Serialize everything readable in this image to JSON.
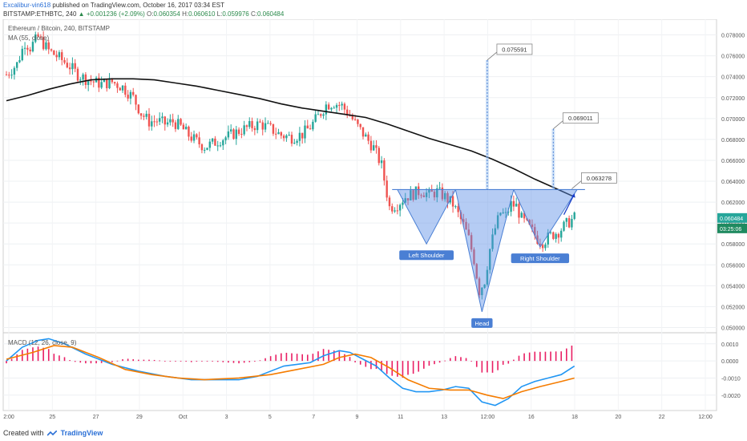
{
  "header": {
    "author": "Excalibur-vin618",
    "published": "published on TradingView.com, October 16, 2017 03:34 EST",
    "symbol": "BITSTAMP:ETHBTC, 240",
    "change": "▲ +0.001236 (+2.09%)",
    "open_label": "O:",
    "open": "0.060354",
    "high_label": "H:",
    "high": "0.060610",
    "low_label": "L:",
    "low": "0.059976",
    "close_label": "C:",
    "close": "0.060484"
  },
  "legend": {
    "title": "Ethereum / Bitcoin, 240, BITSTAMP",
    "ma": "MA (55, close)",
    "macd": "MACD (12, 26, close, 9)"
  },
  "footer": {
    "created_with": "Created with",
    "brand": "TradingView"
  },
  "colors": {
    "up": "#26a69a",
    "down": "#ef5350",
    "ma": "#111111",
    "macd": "#2196f3",
    "signal": "#f57c00",
    "hist": "#e91e63",
    "pattern": "#5b8ee6"
  },
  "chart_data": [
    {
      "type": "candlestick",
      "title": "Ethereum / Bitcoin, 240, BITSTAMP",
      "ylim": [
        0.0495,
        0.0795
      ],
      "y_ticks": [
        0.078,
        0.076,
        0.074,
        0.072,
        0.07,
        0.068,
        0.066,
        0.064,
        0.062,
        0.06,
        0.058,
        0.056,
        0.054,
        0.052,
        0.05
      ],
      "y_tick_labels": [
        "0.078000",
        "0.076000",
        "0.074000",
        "0.072000",
        "0.070000",
        "0.068000",
        "0.066000",
        "0.064000",
        "0.062000",
        "0.060000",
        "0.058000",
        "0.056000",
        "0.054000",
        "0.052000",
        "0.050000"
      ],
      "x_ticks": [
        "2:00",
        "25",
        "27",
        "29",
        "Oct",
        "3",
        "5",
        "7",
        "9",
        "11",
        "13",
        "12:00",
        "16",
        "18",
        "20",
        "22",
        "12:00"
      ],
      "last_price": "0.060484",
      "countdown": "03:25:06",
      "close_path": [
        [
          0,
          0.0742
        ],
        [
          4,
          0.0752
        ],
        [
          7,
          0.0773
        ],
        [
          9,
          0.0768
        ],
        [
          12,
          0.0778
        ],
        [
          16,
          0.0765
        ],
        [
          20,
          0.0758
        ],
        [
          24,
          0.075
        ],
        [
          27,
          0.0742
        ],
        [
          30,
          0.0738
        ],
        [
          33,
          0.0735
        ],
        [
          36,
          0.0733
        ],
        [
          40,
          0.0735
        ],
        [
          44,
          0.073
        ],
        [
          48,
          0.072
        ],
        [
          51,
          0.0705
        ],
        [
          54,
          0.0697
        ],
        [
          57,
          0.0698
        ],
        [
          60,
          0.0695
        ],
        [
          63,
          0.0697
        ],
        [
          66,
          0.0692
        ],
        [
          69,
          0.0684
        ],
        [
          72,
          0.0678
        ],
        [
          75,
          0.0673
        ],
        [
          78,
          0.0676
        ],
        [
          81,
          0.068
        ],
        [
          84,
          0.0683
        ],
        [
          88,
          0.0688
        ],
        [
          92,
          0.0692
        ],
        [
          96,
          0.0695
        ],
        [
          100,
          0.069
        ],
        [
          104,
          0.0684
        ],
        [
          108,
          0.0682
        ],
        [
          112,
          0.0685
        ],
        [
          115,
          0.0692
        ],
        [
          118,
          0.0702
        ],
        [
          121,
          0.0713
        ],
        [
          124,
          0.0715
        ],
        [
          127,
          0.0712
        ],
        [
          130,
          0.0703
        ],
        [
          133,
          0.0692
        ],
        [
          136,
          0.0682
        ],
        [
          139,
          0.0672
        ],
        [
          142,
          0.0655
        ],
        [
          145,
          0.0615
        ],
        [
          148,
          0.0618
        ],
        [
          151,
          0.0625
        ],
        [
          154,
          0.0628
        ],
        [
          157,
          0.0631
        ],
        [
          160,
          0.0627
        ],
        [
          163,
          0.063
        ],
        [
          166,
          0.0625
        ],
        [
          169,
          0.0618
        ],
        [
          171,
          0.0608
        ],
        [
          173,
          0.0598
        ],
        [
          175,
          0.0585
        ],
        [
          177,
          0.0565
        ],
        [
          179,
          0.0535
        ],
        [
          181,
          0.0545
        ],
        [
          183,
          0.0575
        ],
        [
          185,
          0.0595
        ],
        [
          187,
          0.061
        ],
        [
          189,
          0.0607
        ],
        [
          191,
          0.0618
        ],
        [
          193,
          0.0616
        ],
        [
          195,
          0.0604
        ],
        [
          197,
          0.0598
        ],
        [
          199,
          0.0592
        ],
        [
          201,
          0.0585
        ],
        [
          203,
          0.0582
        ],
        [
          206,
          0.0588
        ],
        [
          209,
          0.0592
        ],
        [
          212,
          0.0599
        ],
        [
          215,
          0.0605
        ]
      ],
      "ma_period": 55,
      "ma_path": [
        [
          0,
          0.0717
        ],
        [
          8,
          0.0722
        ],
        [
          16,
          0.0728
        ],
        [
          24,
          0.0733
        ],
        [
          32,
          0.0737
        ],
        [
          40,
          0.0738
        ],
        [
          48,
          0.0738
        ],
        [
          56,
          0.0737
        ],
        [
          64,
          0.0734
        ],
        [
          72,
          0.0731
        ],
        [
          80,
          0.0727
        ],
        [
          88,
          0.0723
        ],
        [
          96,
          0.0719
        ],
        [
          104,
          0.0714
        ],
        [
          112,
          0.071
        ],
        [
          120,
          0.0707
        ],
        [
          128,
          0.0704
        ],
        [
          136,
          0.0701
        ],
        [
          144,
          0.0695
        ],
        [
          152,
          0.0688
        ],
        [
          160,
          0.0681
        ],
        [
          168,
          0.0675
        ],
        [
          176,
          0.0669
        ],
        [
          184,
          0.0661
        ],
        [
          192,
          0.0652
        ],
        [
          200,
          0.0642
        ],
        [
          208,
          0.0633
        ],
        [
          215,
          0.0625
        ]
      ],
      "pattern": {
        "left_shoulder": {
          "label": "Left Shoulder",
          "low": 0.058,
          "low_x": 159
        },
        "head": {
          "label": "Head",
          "low": 0.0515,
          "low_x": 180
        },
        "right_shoulder": {
          "label": "Right Shoulder",
          "low": 0.0577,
          "low_x": 202
        },
        "neckline": 0.0632
      },
      "targets": [
        {
          "label": "0.075591",
          "value": 0.075591,
          "x": 182
        },
        {
          "label": "0.069011",
          "value": 0.069011,
          "x": 207
        },
        {
          "label": "0.063278",
          "value": 0.063278,
          "x": 214
        }
      ]
    },
    {
      "type": "line",
      "title": "MACD (12, 26, close, 9)",
      "ylim": [
        -0.0029,
        0.0016
      ],
      "y_ticks": [
        0.001,
        0.0,
        -0.001,
        -0.002
      ],
      "y_tick_labels": [
        "0.0010",
        "0.0000",
        "-0.0010",
        "-0.0020"
      ],
      "series": [
        {
          "name": "MACD",
          "values": [
            [
              0,
              0.0
            ],
            [
              6,
              0.0008
            ],
            [
              12,
              0.0012
            ],
            [
              16,
              0.0013
            ],
            [
              22,
              0.001
            ],
            [
              30,
              0.0004
            ],
            [
              40,
              -0.0002
            ],
            [
              50,
              -0.0006
            ],
            [
              60,
              -0.0009
            ],
            [
              70,
              -0.0011
            ],
            [
              80,
              -0.0011
            ],
            [
              88,
              -0.0011
            ],
            [
              95,
              -0.0009
            ],
            [
              100,
              -0.0006
            ],
            [
              105,
              -0.0003
            ],
            [
              110,
              -0.0002
            ],
            [
              115,
              -0.0001
            ],
            [
              120,
              0.0003
            ],
            [
              126,
              0.0006
            ],
            [
              130,
              0.0005
            ],
            [
              135,
              0.0001
            ],
            [
              140,
              -0.0003
            ],
            [
              145,
              -0.001
            ],
            [
              150,
              -0.0016
            ],
            [
              155,
              -0.0018
            ],
            [
              160,
              -0.0018
            ],
            [
              165,
              -0.0017
            ],
            [
              170,
              -0.0015
            ],
            [
              175,
              -0.0016
            ],
            [
              180,
              -0.0024
            ],
            [
              185,
              -0.0026
            ],
            [
              190,
              -0.0022
            ],
            [
              195,
              -0.0015
            ],
            [
              200,
              -0.0012
            ],
            [
              205,
              -0.001
            ],
            [
              210,
              -0.0008
            ],
            [
              215,
              -0.0003
            ]
          ]
        },
        {
          "name": "Signal",
          "values": [
            [
              0,
              0.0001
            ],
            [
              10,
              0.0005
            ],
            [
              18,
              0.0009
            ],
            [
              25,
              0.0008
            ],
            [
              35,
              0.0002
            ],
            [
              45,
              -0.0005
            ],
            [
              55,
              -0.0008
            ],
            [
              65,
              -0.001
            ],
            [
              75,
              -0.0011
            ],
            [
              88,
              -0.001
            ],
            [
              100,
              -0.0008
            ],
            [
              110,
              -0.0005
            ],
            [
              120,
              -0.0002
            ],
            [
              126,
              0.0002
            ],
            [
              132,
              0.0004
            ],
            [
              138,
              0.0002
            ],
            [
              145,
              -0.0004
            ],
            [
              152,
              -0.0011
            ],
            [
              160,
              -0.0016
            ],
            [
              168,
              -0.0017
            ],
            [
              175,
              -0.0017
            ],
            [
              182,
              -0.002
            ],
            [
              188,
              -0.0022
            ],
            [
              195,
              -0.0018
            ],
            [
              202,
              -0.0015
            ],
            [
              210,
              -0.0012
            ],
            [
              215,
              -0.001
            ]
          ]
        }
      ]
    }
  ]
}
